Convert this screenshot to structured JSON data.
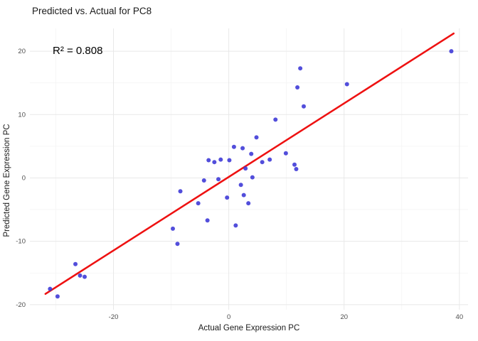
{
  "chart_data": {
    "type": "scatter",
    "title": "Predicted vs. Actual for PC8",
    "annotation": "R² = 0.808",
    "xlabel": "Actual Gene Expression PC",
    "ylabel": "Predicted Gene Expression PC",
    "xlim": [
      -34.5,
      41.5
    ],
    "ylim": [
      -20.8,
      23.6
    ],
    "x_ticks": [
      -20,
      0,
      20,
      40
    ],
    "y_ticks": [
      -20,
      -10,
      0,
      10,
      20
    ],
    "x_minor_ticks": [
      -30,
      -10,
      10,
      30
    ],
    "y_minor_ticks": [
      -15,
      -5,
      5,
      15
    ],
    "grid": true,
    "legend": "none",
    "points": [
      [
        -31.0,
        -17.5
      ],
      [
        -29.7,
        -18.7
      ],
      [
        -26.6,
        -13.6
      ],
      [
        -25.8,
        -15.4
      ],
      [
        -25.0,
        -15.6
      ],
      [
        -9.7,
        -8.0
      ],
      [
        -8.9,
        -10.4
      ],
      [
        -8.4,
        -2.1
      ],
      [
        -5.3,
        -4.0
      ],
      [
        -4.3,
        -0.4
      ],
      [
        -3.7,
        -6.7
      ],
      [
        -3.5,
        2.8
      ],
      [
        -2.5,
        2.5
      ],
      [
        -1.8,
        -0.2
      ],
      [
        -1.4,
        2.9
      ],
      [
        -0.3,
        -3.1
      ],
      [
        0.1,
        2.8
      ],
      [
        0.9,
        4.9
      ],
      [
        1.2,
        -7.5
      ],
      [
        2.1,
        -1.1
      ],
      [
        2.4,
        4.7
      ],
      [
        2.6,
        -2.7
      ],
      [
        2.9,
        1.5
      ],
      [
        3.4,
        -4.0
      ],
      [
        3.9,
        3.8
      ],
      [
        4.1,
        0.1
      ],
      [
        4.8,
        6.4
      ],
      [
        5.8,
        2.5
      ],
      [
        7.1,
        2.9
      ],
      [
        8.1,
        9.2
      ],
      [
        9.9,
        3.9
      ],
      [
        11.4,
        2.1
      ],
      [
        11.7,
        1.4
      ],
      [
        11.9,
        14.3
      ],
      [
        12.4,
        17.3
      ],
      [
        13.0,
        11.3
      ],
      [
        20.5,
        14.8
      ],
      [
        38.6,
        20.0
      ]
    ],
    "regression_line": {
      "x1": -31.8,
      "y1": -18.3,
      "x2": 39.0,
      "y2": 22.8
    },
    "colors": {
      "point": "#3a35d6",
      "line": "#ee1111",
      "grid_major": "#e8e8e8",
      "grid_minor": "#f4f4f4",
      "tick_text": "#4d4d4d",
      "background": "#ffffff"
    }
  }
}
